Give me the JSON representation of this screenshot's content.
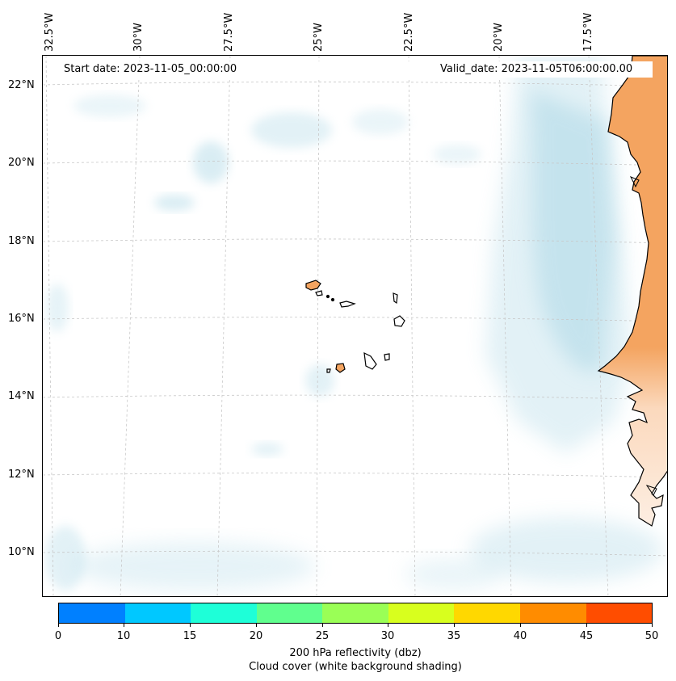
{
  "map": {
    "start_date": "Start date: 2023-11-05_00:00:00",
    "valid_date": "Valid_date: 2023-11-05T06:00:00.00",
    "lon_labels": [
      "32.5°W",
      "30°W",
      "27.5°W",
      "25°W",
      "22.5°W",
      "20°W",
      "17.5°W"
    ],
    "lat_labels": [
      "22°N",
      "20°N",
      "18°N",
      "16°N",
      "14°N",
      "12°N",
      "10°N"
    ],
    "colors": {
      "land": "#f4a460",
      "cloud": "#add8e6",
      "coast": "#000000",
      "grid": "#c8c8c8"
    }
  },
  "colorbar": {
    "ticks": [
      "0",
      "10",
      "15",
      "20",
      "25",
      "30",
      "35",
      "40",
      "45",
      "50"
    ],
    "colors": [
      "#0080ff",
      "#00c8ff",
      "#1effd8",
      "#60ff8e",
      "#9aff56",
      "#d8ff1e",
      "#ffd800",
      "#ff8c00",
      "#ff4d00"
    ],
    "title_line1": "200 hPa reflectivity (dbz)",
    "title_line2": "Cloud cover (white background shading)"
  }
}
